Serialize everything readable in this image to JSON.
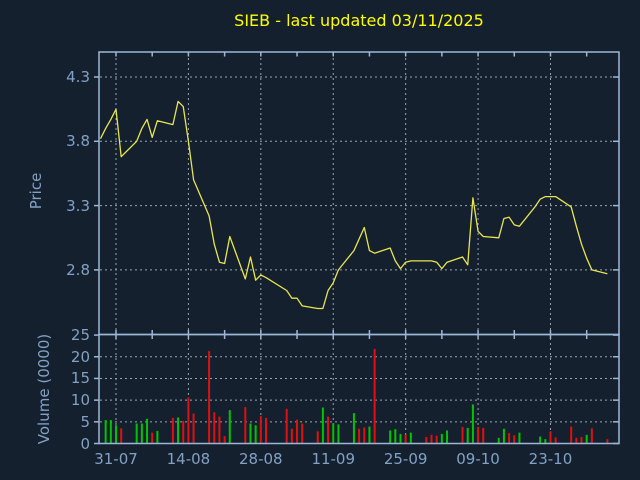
{
  "title": "SIEB - last updated 03/11/2025",
  "colors": {
    "background": "#14202e",
    "border": "#9bb7d6",
    "grid": "#9aa3ac",
    "label": "#82a1c5",
    "title": "#ffff00",
    "price_line": "#e8e550",
    "volume_up": "#00c400",
    "volume_down": "#e01010"
  },
  "chart_data": [
    {
      "type": "line",
      "title": "SIEB - last updated 03/11/2025",
      "xlabel": "",
      "ylabel": "Price",
      "ylim": [
        2.33,
        4.49
      ],
      "grid": true,
      "legend": "none",
      "yticks": [
        {
          "label": "4.3",
          "v": 4.3
        },
        {
          "label": "3.8",
          "v": 3.8
        },
        {
          "label": "3.3",
          "v": 3.3
        },
        {
          "label": "2.8",
          "v": 2.8
        }
      ],
      "xticks": [
        {
          "label": "31-07",
          "d": 2
        },
        {
          "label": "14-08",
          "d": 16
        },
        {
          "label": "28-08",
          "d": 30
        },
        {
          "label": "11-09",
          "d": 44
        },
        {
          "label": "25-09",
          "d": 58
        },
        {
          "label": "09-10",
          "d": 72
        },
        {
          "label": "23-10",
          "d": 86
        }
      ],
      "x_minor_days": [
        9,
        23,
        37,
        51,
        65,
        79,
        93
      ],
      "series": [
        {
          "name": "price",
          "points": [
            [
              -1,
              3.82
            ],
            [
              0,
              3.9
            ],
            [
              1,
              3.97
            ],
            [
              2,
              4.05
            ],
            [
              3,
              3.68
            ],
            [
              6,
              3.8
            ],
            [
              7,
              3.9
            ],
            [
              8,
              3.97
            ],
            [
              9,
              3.83
            ],
            [
              10,
              3.96
            ],
            [
              13,
              3.93
            ],
            [
              14,
              4.11
            ],
            [
              15,
              4.07
            ],
            [
              16,
              3.8
            ],
            [
              17,
              3.5
            ],
            [
              20,
              3.22
            ],
            [
              21,
              3.0
            ],
            [
              22,
              2.86
            ],
            [
              23,
              2.85
            ],
            [
              24,
              3.06
            ],
            [
              27,
              2.73
            ],
            [
              28,
              2.9
            ],
            [
              29,
              2.72
            ],
            [
              30,
              2.76
            ],
            [
              31,
              2.74
            ],
            [
              35,
              2.64
            ],
            [
              36,
              2.58
            ],
            [
              37,
              2.58
            ],
            [
              38,
              2.52
            ],
            [
              41,
              2.5
            ],
            [
              42,
              2.5
            ],
            [
              43,
              2.64
            ],
            [
              44,
              2.7
            ],
            [
              45,
              2.8
            ],
            [
              48,
              2.95
            ],
            [
              49,
              3.04
            ],
            [
              50,
              3.13
            ],
            [
              51,
              2.95
            ],
            [
              52,
              2.93
            ],
            [
              55,
              2.97
            ],
            [
              56,
              2.87
            ],
            [
              57,
              2.81
            ],
            [
              58,
              2.86
            ],
            [
              59,
              2.87
            ],
            [
              62,
              2.87
            ],
            [
              63,
              2.87
            ],
            [
              64,
              2.86
            ],
            [
              65,
              2.81
            ],
            [
              66,
              2.86
            ],
            [
              69,
              2.9
            ],
            [
              70,
              2.84
            ],
            [
              71,
              3.36
            ],
            [
              72,
              3.1
            ],
            [
              73,
              3.06
            ],
            [
              76,
              3.05
            ],
            [
              77,
              3.2
            ],
            [
              78,
              3.21
            ],
            [
              79,
              3.15
            ],
            [
              80,
              3.14
            ],
            [
              83,
              3.29
            ],
            [
              84,
              3.35
            ],
            [
              85,
              3.37
            ],
            [
              86,
              3.37
            ],
            [
              87,
              3.37
            ],
            [
              90,
              3.29
            ],
            [
              91,
              3.14
            ],
            [
              92,
              3.0
            ],
            [
              93,
              2.89
            ],
            [
              94,
              2.8
            ],
            [
              97,
              2.77
            ]
          ]
        }
      ]
    },
    {
      "type": "bar",
      "ylabel": "Volume (0000)",
      "ylim": [
        0,
        25
      ],
      "grid": true,
      "yticks": [
        {
          "label": "25",
          "v": 25
        },
        {
          "label": "20",
          "v": 20
        },
        {
          "label": "15",
          "v": 15
        },
        {
          "label": "10",
          "v": 10
        },
        {
          "label": "5",
          "v": 5
        },
        {
          "label": "0",
          "v": 0
        }
      ],
      "bars": [
        [
          0,
          5.4,
          "g"
        ],
        [
          1,
          5.4,
          "g"
        ],
        [
          2,
          4.2,
          "g"
        ],
        [
          3,
          3.5,
          "r"
        ],
        [
          6,
          4.6,
          "g"
        ],
        [
          7,
          4.6,
          "g"
        ],
        [
          8,
          5.7,
          "g"
        ],
        [
          9,
          2.5,
          "r"
        ],
        [
          10,
          2.9,
          "g"
        ],
        [
          13,
          5.9,
          "r"
        ],
        [
          14,
          6.0,
          "g"
        ],
        [
          15,
          5.2,
          "r"
        ],
        [
          16,
          10.6,
          "r"
        ],
        [
          17,
          6.9,
          "r"
        ],
        [
          20,
          21.3,
          "r"
        ],
        [
          21,
          7.2,
          "r"
        ],
        [
          22,
          6.2,
          "r"
        ],
        [
          23,
          1.7,
          "r"
        ],
        [
          24,
          7.7,
          "g"
        ],
        [
          27,
          8.4,
          "r"
        ],
        [
          28,
          4.6,
          "g"
        ],
        [
          29,
          4.2,
          "g"
        ],
        [
          30,
          6.3,
          "r"
        ],
        [
          31,
          5.9,
          "r"
        ],
        [
          35,
          8.0,
          "r"
        ],
        [
          36,
          3.4,
          "r"
        ],
        [
          37,
          5.5,
          "r"
        ],
        [
          38,
          4.6,
          "r"
        ],
        [
          41,
          2.8,
          "r"
        ],
        [
          42,
          8.3,
          "g"
        ],
        [
          43,
          6.2,
          "r"
        ],
        [
          44,
          4.6,
          "g"
        ],
        [
          45,
          4.4,
          "g"
        ],
        [
          48,
          7.0,
          "g"
        ],
        [
          49,
          3.4,
          "r"
        ],
        [
          50,
          3.7,
          "r"
        ],
        [
          51,
          3.9,
          "g"
        ],
        [
          52,
          21.8,
          "r"
        ],
        [
          55,
          3.0,
          "g"
        ],
        [
          56,
          3.3,
          "g"
        ],
        [
          57,
          2.2,
          "g"
        ],
        [
          58,
          2.0,
          "r"
        ],
        [
          59,
          2.5,
          "g"
        ],
        [
          62,
          1.5,
          "r"
        ],
        [
          63,
          2.0,
          "r"
        ],
        [
          64,
          1.8,
          "r"
        ],
        [
          65,
          2.2,
          "g"
        ],
        [
          66,
          3.0,
          "g"
        ],
        [
          69,
          3.8,
          "r"
        ],
        [
          70,
          3.6,
          "g"
        ],
        [
          71,
          9.0,
          "g"
        ],
        [
          72,
          3.8,
          "r"
        ],
        [
          73,
          3.6,
          "r"
        ],
        [
          76,
          1.3,
          "g"
        ],
        [
          77,
          3.4,
          "g"
        ],
        [
          78,
          2.4,
          "r"
        ],
        [
          79,
          1.9,
          "r"
        ],
        [
          80,
          2.5,
          "g"
        ],
        [
          84,
          1.6,
          "g"
        ],
        [
          85,
          1.0,
          "g"
        ],
        [
          86,
          2.8,
          "r"
        ],
        [
          87,
          1.4,
          "r"
        ],
        [
          90,
          3.9,
          "r"
        ],
        [
          91,
          1.3,
          "r"
        ],
        [
          92,
          1.5,
          "r"
        ],
        [
          93,
          2.0,
          "g"
        ],
        [
          94,
          3.5,
          "r"
        ],
        [
          97,
          1.0,
          "r"
        ]
      ]
    }
  ]
}
